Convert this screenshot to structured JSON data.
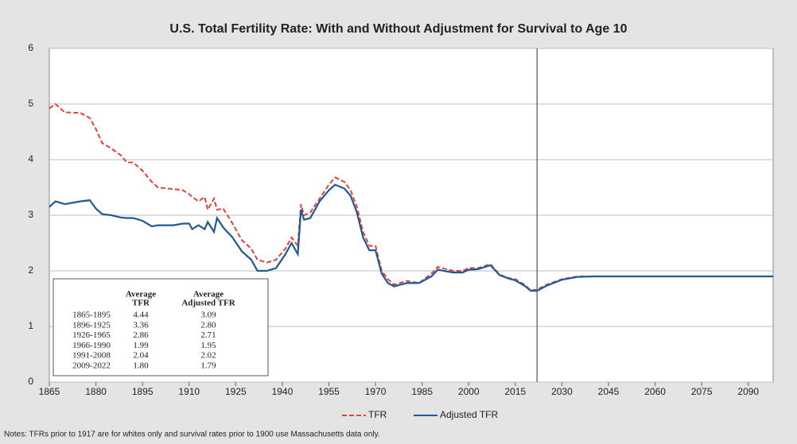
{
  "chart_data": {
    "type": "line",
    "title": "U.S. Total Fertility Rate: With and Without Adjustment for Survival to Age 10",
    "x": [
      1865,
      1867,
      1870,
      1875,
      1878,
      1880,
      1882,
      1885,
      1888,
      1890,
      1892,
      1895,
      1898,
      1900,
      1905,
      1908,
      1910,
      1911,
      1913,
      1915,
      1916,
      1918,
      1919,
      1921,
      1924,
      1927,
      1930,
      1932,
      1935,
      1938,
      1941,
      1943,
      1945,
      1946,
      1947,
      1949,
      1952,
      1955,
      1957,
      1960,
      1962,
      1964,
      1966,
      1968,
      1970,
      1972,
      1974,
      1976,
      1980,
      1984,
      1988,
      1990,
      1995,
      1998,
      2000,
      2003,
      2007,
      2010,
      2013,
      2015,
      2018,
      2020,
      2022,
      2025,
      2030,
      2035,
      2040,
      2098
    ],
    "series": [
      {
        "name": "TFR",
        "color": "#e0413a",
        "dash": true,
        "values": [
          4.92,
          5.0,
          4.85,
          4.84,
          4.75,
          4.55,
          4.3,
          4.2,
          4.08,
          3.95,
          3.95,
          3.8,
          3.6,
          3.5,
          3.47,
          3.45,
          3.38,
          3.33,
          3.25,
          3.33,
          3.1,
          3.3,
          3.1,
          3.12,
          2.85,
          2.55,
          2.4,
          2.2,
          2.15,
          2.2,
          2.4,
          2.6,
          2.45,
          3.2,
          3.0,
          3.05,
          3.3,
          3.55,
          3.68,
          3.6,
          3.45,
          3.15,
          2.7,
          2.45,
          2.45,
          2.0,
          1.85,
          1.75,
          1.82,
          1.78,
          1.95,
          2.07,
          2.0,
          2.0,
          2.05,
          2.05,
          2.12,
          1.93,
          1.87,
          1.85,
          1.75,
          1.65,
          1.66,
          1.75,
          1.85,
          1.9,
          1.9,
          1.9
        ]
      },
      {
        "name": "Adjusted TFR",
        "color": "#1f5a96",
        "dash": false,
        "values": [
          3.15,
          3.25,
          3.2,
          3.25,
          3.27,
          3.12,
          3.02,
          3.0,
          2.96,
          2.95,
          2.95,
          2.9,
          2.8,
          2.82,
          2.82,
          2.85,
          2.85,
          2.75,
          2.82,
          2.75,
          2.88,
          2.7,
          2.95,
          2.78,
          2.6,
          2.35,
          2.2,
          2.0,
          2.0,
          2.05,
          2.3,
          2.5,
          2.3,
          3.1,
          2.92,
          2.95,
          3.25,
          3.45,
          3.55,
          3.48,
          3.35,
          3.05,
          2.6,
          2.37,
          2.37,
          1.95,
          1.78,
          1.72,
          1.78,
          1.78,
          1.9,
          2.02,
          1.97,
          1.97,
          2.02,
          2.03,
          2.1,
          1.92,
          1.86,
          1.83,
          1.73,
          1.64,
          1.64,
          1.73,
          1.84,
          1.89,
          1.9,
          1.9
        ]
      }
    ],
    "xlim": [
      1865,
      2098
    ],
    "xticks": [
      1865,
      1880,
      1895,
      1910,
      1925,
      1940,
      1955,
      1970,
      1985,
      2000,
      2015,
      2030,
      2045,
      2060,
      2075,
      2090
    ],
    "ylim": [
      0,
      6
    ],
    "yticks": [
      0,
      1,
      2,
      3,
      4,
      5,
      6
    ],
    "grid": true,
    "divider_x": 2022,
    "legend": "bottom",
    "inset_table": {
      "headers": [
        [
          "Average",
          "TFR"
        ],
        [
          "Average",
          "Adjusted TFR"
        ]
      ],
      "rows": [
        [
          "1865-1895",
          "4.44",
          "3.09"
        ],
        [
          "1896-1925",
          "3.36",
          "2.80"
        ],
        [
          "1926-1965",
          "2.86",
          "2.71"
        ],
        [
          "1966-1990",
          "1.99",
          "1.95"
        ],
        [
          "1991-2008",
          "2.04",
          "2.02"
        ],
        [
          "2009-2022",
          "1.80",
          "1.79"
        ]
      ]
    },
    "note": "Notes: TFRs prior to 1917 are for whites only and survival rates prior to 1900 use Massachusetts data only."
  }
}
